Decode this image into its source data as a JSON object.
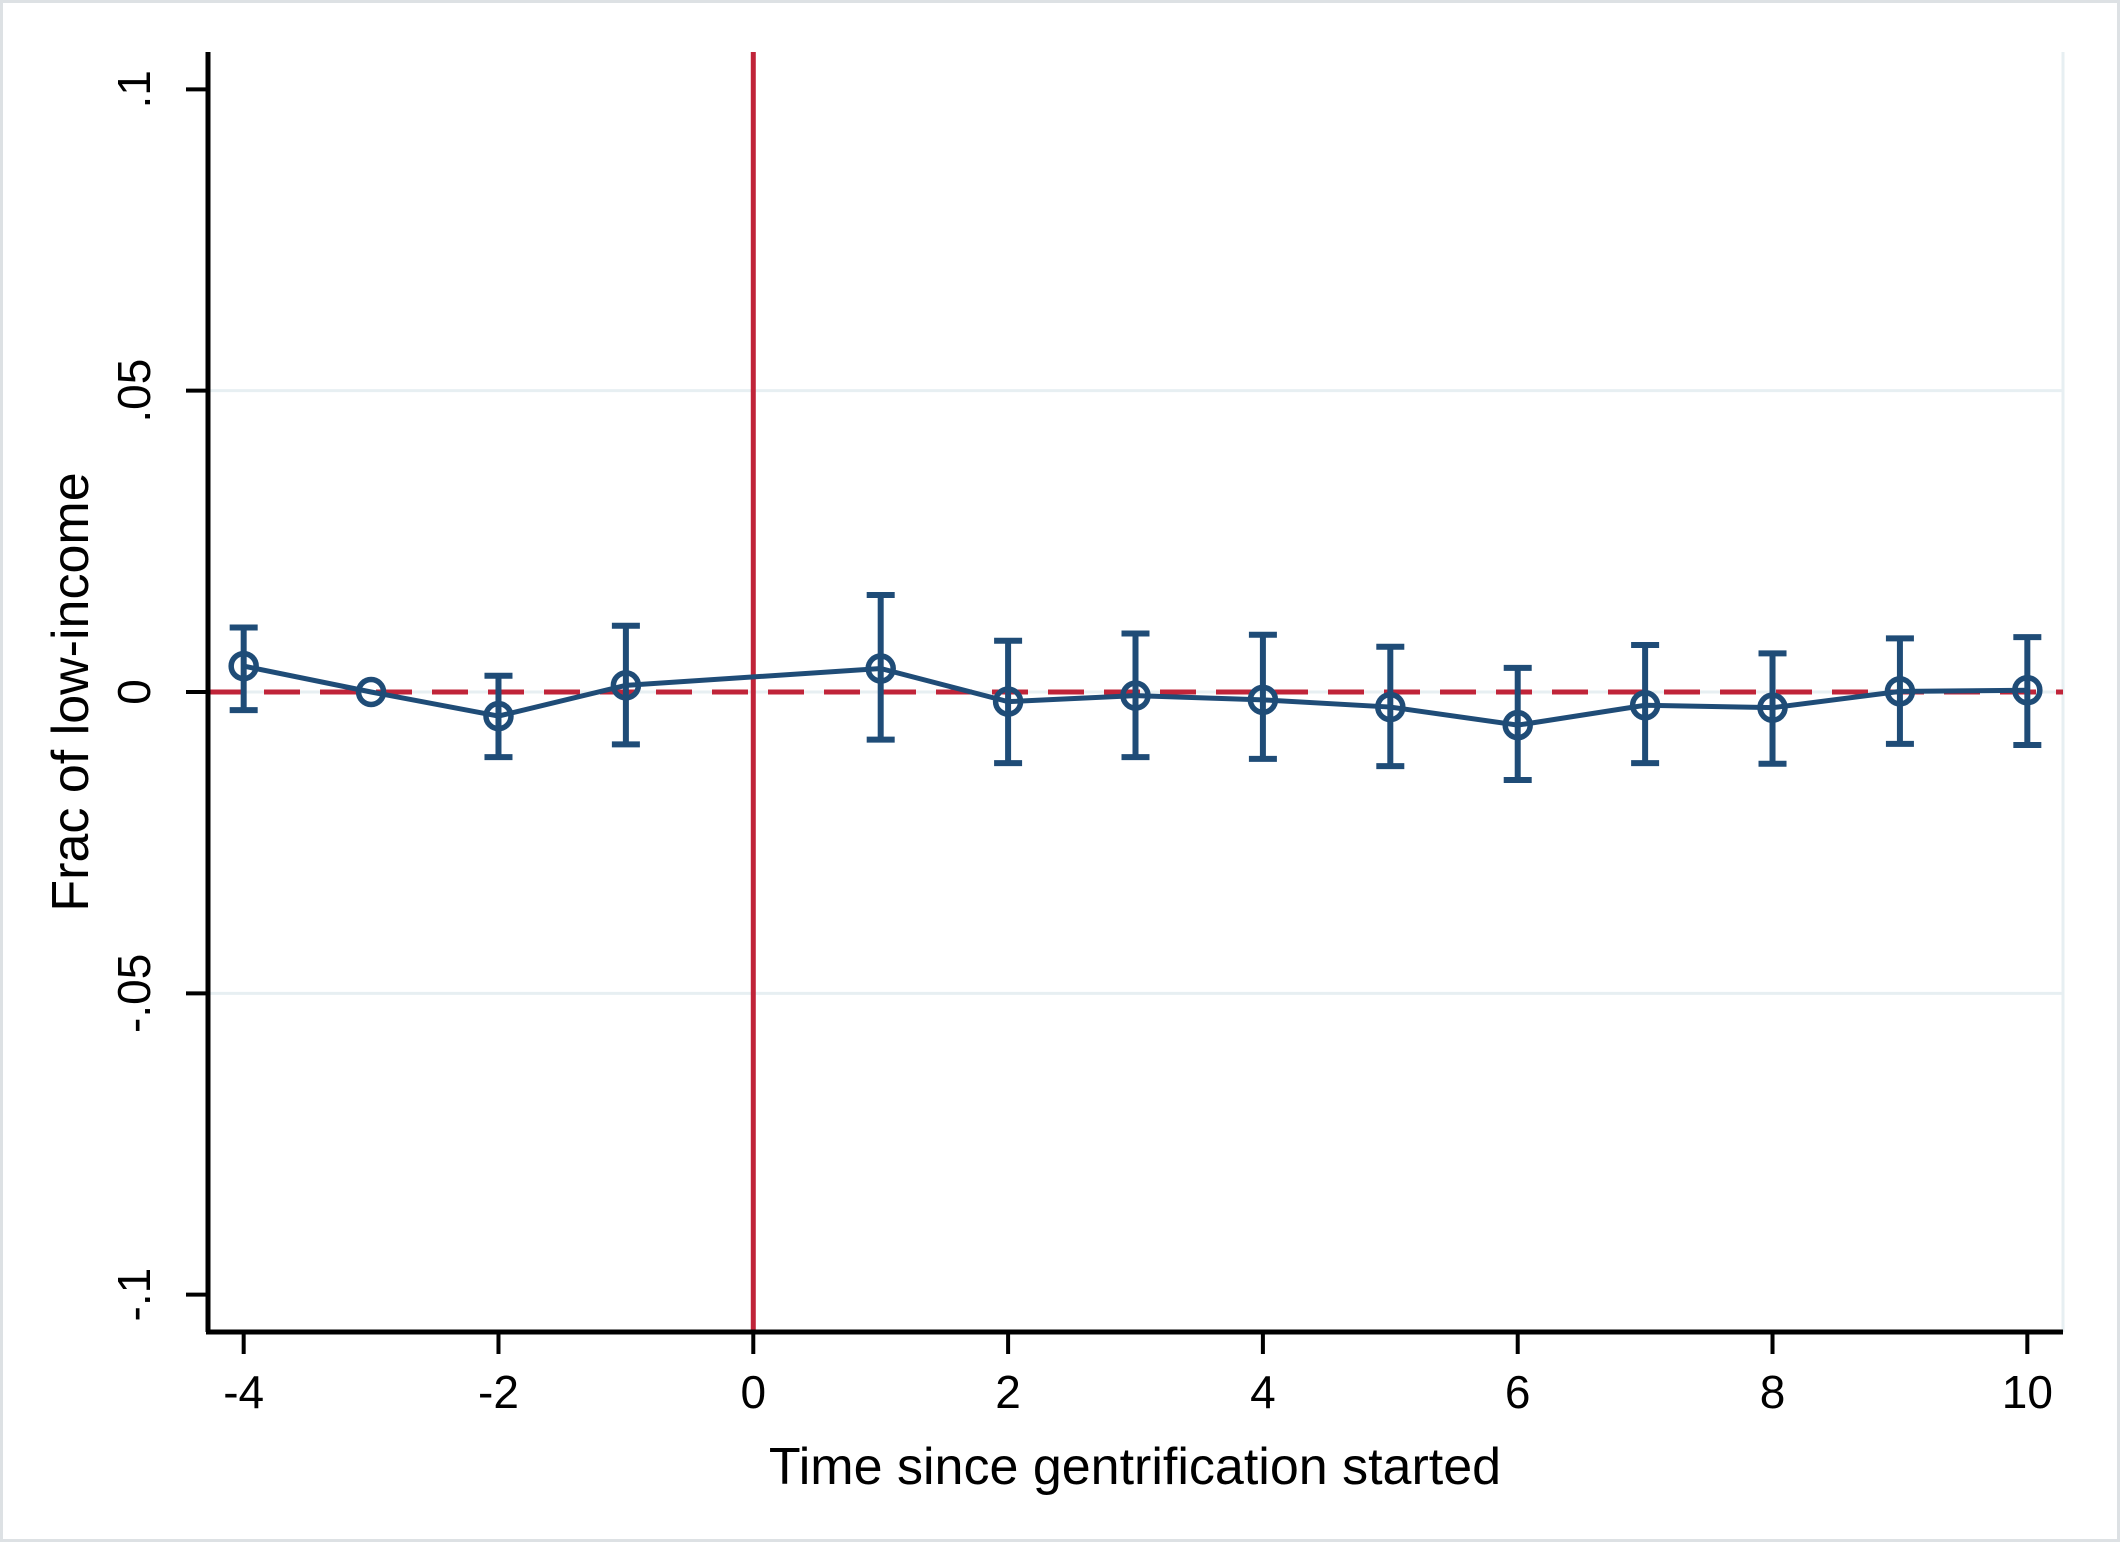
{
  "figure": {
    "background_color": "#ffffff",
    "border_color": "#dde1e4"
  },
  "chart_data": {
    "type": "line",
    "subtype": "event-study-coefficient-plot",
    "title": "",
    "xlabel": "Time since gentrification started",
    "ylabel": "Frac of low-income",
    "xlim": [
      -4.28,
      10.28
    ],
    "ylim": [
      -0.1062,
      0.1062
    ],
    "x_tick_values": [
      -4,
      -2,
      0,
      2,
      4,
      6,
      8,
      10
    ],
    "x_tick_labels": [
      "-4",
      "-2",
      "0",
      "2",
      "4",
      "6",
      "8",
      "10"
    ],
    "y_tick_values": [
      0.1,
      0.05,
      0,
      -0.05,
      -0.1
    ],
    "y_tick_labels": [
      ".1",
      ".05",
      "0",
      "-.05",
      "-.1"
    ],
    "grid_values": [
      0.05,
      0,
      -0.05
    ],
    "grid_on": true,
    "legend": "none",
    "reference_vline_x": 0,
    "reference_hline_y": 0,
    "series": [
      {
        "name": "coefficient",
        "marker": "open-circle",
        "x": [
          -4,
          -3,
          -2,
          -1,
          1,
          2,
          3,
          4,
          5,
          6,
          7,
          8,
          9,
          10
        ],
        "y": [
          0.0043,
          0.0,
          -0.004,
          0.0011,
          0.0039,
          -0.0016,
          -0.0006,
          -0.0013,
          -0.0025,
          -0.0055,
          -0.0022,
          -0.0026,
          0.0001,
          0.0003
        ],
        "ci_low": [
          -0.003,
          null,
          -0.0108,
          -0.0087,
          -0.0079,
          -0.0118,
          -0.0108,
          -0.0111,
          -0.0123,
          -0.0146,
          -0.0118,
          -0.0119,
          -0.0086,
          -0.0088
        ],
        "ci_high": [
          0.0107,
          null,
          0.0027,
          0.011,
          0.0161,
          0.0085,
          0.0097,
          0.0095,
          0.0075,
          0.004,
          0.0078,
          0.0064,
          0.0089,
          0.0091
        ]
      }
    ],
    "colors": {
      "series": "#1f4c77",
      "reference_line": "#c02439",
      "grid": "#e7eff2",
      "axis": "#000000",
      "background": "#ffffff"
    }
  }
}
